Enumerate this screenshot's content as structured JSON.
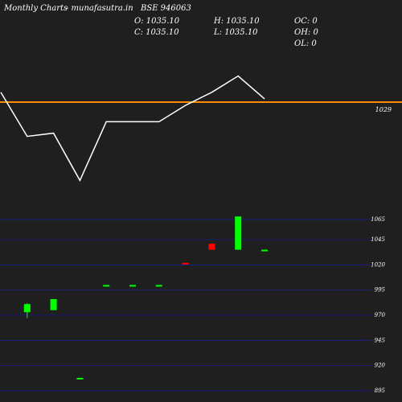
{
  "header": {
    "title": "Monthly Charts",
    "source": "- munafasutra.in",
    "symbol": "BSE 946063",
    "open": "O: 1035.10",
    "high": "H: 1035.10",
    "oc": "OC: 0",
    "close": "C: 1035.10",
    "low": "L: 1035.10",
    "oh": "OH: 0",
    "ol": "OL: 0"
  },
  "colors": {
    "background": "#1f1f1f",
    "line": "#ffffff",
    "ref_line": "#ff8c00",
    "grid": "#1a1aa0",
    "up": "#00ff00",
    "down": "#ff0000"
  },
  "chart_data": [
    {
      "type": "line",
      "label": "1029",
      "reference": 1029,
      "values": [
        1029.6,
        1026.9,
        1027.1,
        1024.2,
        1027.8,
        1027.8,
        1027.8,
        1028.8,
        1029.6,
        1030.6,
        1029.2
      ]
    },
    {
      "type": "candlestick",
      "yticks": [
        1065,
        1045,
        1020,
        995,
        970,
        945,
        920,
        895
      ],
      "ylim": [
        891,
        1069
      ],
      "candles": [
        {
          "o": 973,
          "h": 982,
          "l": 967,
          "c": 981
        },
        {
          "o": 975,
          "h": 986,
          "l": 975,
          "c": 986
        },
        {
          "o": 1000,
          "h": 1000,
          "l": 1000,
          "c": 1000
        },
        {
          "o": 1000,
          "h": 1000,
          "l": 1000,
          "c": 1000
        },
        {
          "o": 1000,
          "h": 1000,
          "l": 1000,
          "c": 1000
        },
        {
          "o": 1022,
          "h": 1022,
          "l": 1021,
          "c": 1021
        },
        {
          "o": 1041,
          "h": 1041,
          "l": 1035,
          "c": 1035
        },
        {
          "o": 1035,
          "h": 1068,
          "l": 1035,
          "c": 1068
        },
        {
          "o": 1035,
          "h": 1035,
          "l": 1035,
          "c": 1035
        }
      ],
      "candle_slots": [
        1,
        2,
        4,
        5,
        6,
        7,
        8,
        9,
        10
      ],
      "extra_marks": [
        {
          "slot": 3,
          "value": 907
        }
      ]
    }
  ]
}
